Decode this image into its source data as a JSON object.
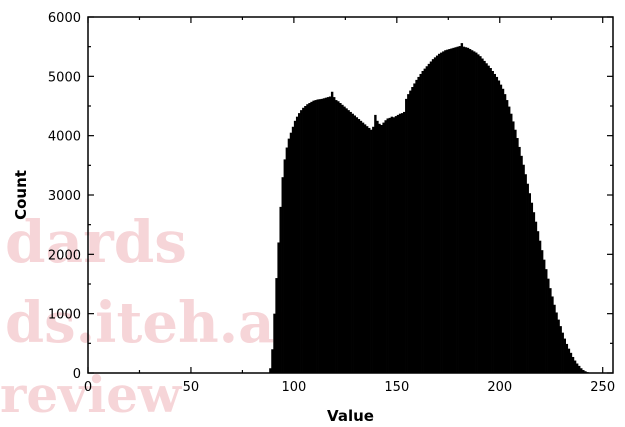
{
  "watermark": {
    "lines": [
      "dards",
      "ds.iteh.ai)",
      "review"
    ],
    "color": "#f4c7cc"
  },
  "chart_data": {
    "type": "bar",
    "title": "",
    "xlabel": "Value",
    "ylabel": "Count",
    "xlim": [
      0,
      255
    ],
    "ylim": [
      0,
      6000
    ],
    "x_ticks": [
      0,
      50,
      100,
      150,
      200,
      250
    ],
    "y_ticks": [
      0,
      1000,
      2000,
      3000,
      4000,
      5000,
      6000
    ],
    "grid": false,
    "legend": "none",
    "bar_color": "#000000",
    "bin_width": 1,
    "series": [
      {
        "x": [
          88,
          89,
          90,
          91,
          92,
          93,
          94,
          95,
          96,
          97,
          98,
          99,
          100,
          101,
          102,
          103,
          104,
          105,
          106,
          107,
          108,
          109,
          110,
          111,
          112,
          113,
          114,
          115,
          116,
          117,
          118,
          119,
          120,
          121,
          122,
          123,
          124,
          125,
          126,
          127,
          128,
          129,
          130,
          131,
          132,
          133,
          134,
          135,
          136,
          137,
          138,
          139,
          140,
          141,
          142,
          143,
          144,
          145,
          146,
          147,
          148,
          149,
          150,
          151,
          152,
          153,
          154,
          155,
          156,
          157,
          158,
          159,
          160,
          161,
          162,
          163,
          164,
          165,
          166,
          167,
          168,
          169,
          170,
          171,
          172,
          173,
          174,
          175,
          176,
          177,
          178,
          179,
          180,
          181,
          182,
          183,
          184,
          185,
          186,
          187,
          188,
          189,
          190,
          191,
          192,
          193,
          194,
          195,
          196,
          197,
          198,
          199,
          200,
          201,
          202,
          203,
          204,
          205,
          206,
          207,
          208,
          209,
          210,
          211,
          212,
          213,
          214,
          215,
          216,
          217,
          218,
          219,
          220,
          221,
          222,
          223,
          224,
          225,
          226,
          227,
          228,
          229,
          230,
          231,
          232,
          233,
          234,
          235,
          236,
          237,
          238,
          239,
          240,
          241,
          242,
          243,
          244,
          245
        ],
        "values": [
          80,
          400,
          1000,
          1600,
          2200,
          2800,
          3300,
          3600,
          3800,
          3950,
          4050,
          4150,
          4250,
          4320,
          4380,
          4430,
          4470,
          4500,
          4530,
          4550,
          4570,
          4590,
          4600,
          4610,
          4615,
          4620,
          4630,
          4640,
          4650,
          4660,
          4740,
          4650,
          4600,
          4580,
          4550,
          4520,
          4490,
          4460,
          4430,
          4400,
          4370,
          4340,
          4310,
          4280,
          4250,
          4220,
          4190,
          4160,
          4130,
          4100,
          4150,
          4350,
          4250,
          4200,
          4180,
          4220,
          4260,
          4290,
          4300,
          4320,
          4310,
          4330,
          4350,
          4370,
          4380,
          4400,
          4620,
          4700,
          4760,
          4820,
          4880,
          4940,
          4990,
          5040,
          5090,
          5130,
          5170,
          5210,
          5250,
          5290,
          5320,
          5350,
          5380,
          5400,
          5420,
          5440,
          5450,
          5460,
          5470,
          5480,
          5490,
          5500,
          5510,
          5560,
          5500,
          5490,
          5480,
          5460,
          5440,
          5420,
          5400,
          5370,
          5340,
          5300,
          5260,
          5220,
          5180,
          5140,
          5090,
          5040,
          4990,
          4930,
          4860,
          4790,
          4700,
          4600,
          4490,
          4370,
          4240,
          4100,
          3960,
          3810,
          3660,
          3510,
          3350,
          3190,
          3030,
          2870,
          2710,
          2550,
          2390,
          2230,
          2070,
          1910,
          1750,
          1590,
          1430,
          1290,
          1150,
          1020,
          900,
          790,
          680,
          580,
          490,
          410,
          340,
          270,
          210,
          160,
          120,
          80,
          50,
          30,
          15,
          5,
          0,
          0
        ]
      }
    ]
  }
}
